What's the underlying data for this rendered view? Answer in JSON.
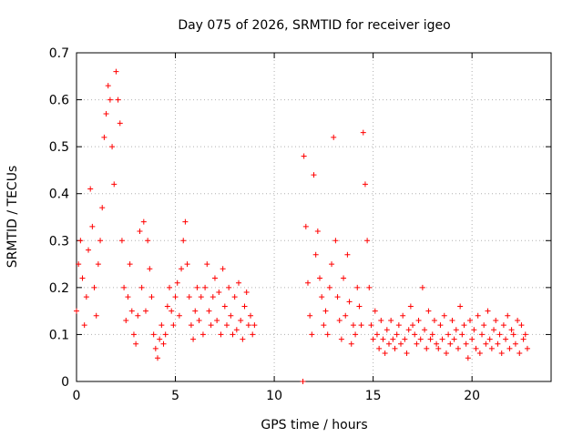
{
  "chart_data": {
    "type": "scatter",
    "title": "Day 075 of 2026, SRMTID for receiver igeo",
    "xlabel": "GPS time / hours",
    "ylabel": "SRMTID / TECUs",
    "xlim": [
      0,
      24
    ],
    "ylim": [
      0,
      0.7
    ],
    "xticks": [
      0,
      5,
      10,
      15,
      20
    ],
    "xtick_labels": [
      "0",
      "5",
      "10",
      "15",
      "20"
    ],
    "yticks": [
      0,
      0.1,
      0.2,
      0.3,
      0.4,
      0.5,
      0.6,
      0.7
    ],
    "ytick_labels": [
      "0",
      "0.1",
      "0.2",
      "0.3",
      "0.4",
      "0.5",
      "0.6",
      "0.7"
    ],
    "grid": true,
    "marker": "+",
    "series_color": "#ff0000",
    "series": [
      {
        "name": "SRMTID",
        "x": [
          0.0,
          0.1,
          0.2,
          0.3,
          0.4,
          0.5,
          0.6,
          0.7,
          0.8,
          0.9,
          1.0,
          1.1,
          1.2,
          1.3,
          1.4,
          1.5,
          1.6,
          1.7,
          1.8,
          1.9,
          2.0,
          2.1,
          2.2,
          2.3,
          2.4,
          2.5,
          2.6,
          2.7,
          2.8,
          2.9,
          3.0,
          3.1,
          3.2,
          3.3,
          3.4,
          3.5,
          3.6,
          3.7,
          3.8,
          3.9,
          4.0,
          4.1,
          4.2,
          4.3,
          4.4,
          4.5,
          4.6,
          4.7,
          4.8,
          4.9,
          5.0,
          5.1,
          5.2,
          5.3,
          5.4,
          5.5,
          5.6,
          5.7,
          5.8,
          5.9,
          6.0,
          6.1,
          6.2,
          6.3,
          6.4,
          6.5,
          6.6,
          6.7,
          6.8,
          6.9,
          7.0,
          7.1,
          7.2,
          7.3,
          7.4,
          7.5,
          7.6,
          7.7,
          7.8,
          7.9,
          8.0,
          8.1,
          8.2,
          8.3,
          8.4,
          8.5,
          8.6,
          8.7,
          8.8,
          8.9,
          9.0,
          11.45,
          11.5,
          11.6,
          11.7,
          11.8,
          11.9,
          12.0,
          12.1,
          12.2,
          12.3,
          12.4,
          12.5,
          12.6,
          12.7,
          12.8,
          12.9,
          13.0,
          13.1,
          13.2,
          13.3,
          13.4,
          13.5,
          13.6,
          13.7,
          13.8,
          13.9,
          14.0,
          14.1,
          14.2,
          14.3,
          14.4,
          14.5,
          14.6,
          14.7,
          14.8,
          14.9,
          15.0,
          15.1,
          15.2,
          15.3,
          15.4,
          15.5,
          15.6,
          15.7,
          15.8,
          15.9,
          16.0,
          16.1,
          16.2,
          16.3,
          16.4,
          16.5,
          16.6,
          16.7,
          16.8,
          16.9,
          17.0,
          17.1,
          17.2,
          17.3,
          17.4,
          17.5,
          17.6,
          17.7,
          17.8,
          17.9,
          18.0,
          18.1,
          18.2,
          18.3,
          18.4,
          18.5,
          18.6,
          18.7,
          18.8,
          18.9,
          19.0,
          19.1,
          19.2,
          19.3,
          19.4,
          19.5,
          19.6,
          19.7,
          19.8,
          19.9,
          20.0,
          20.1,
          20.2,
          20.3,
          20.4,
          20.5,
          20.6,
          20.7,
          20.8,
          20.9,
          21.0,
          21.1,
          21.2,
          21.3,
          21.4,
          21.5,
          21.6,
          21.7,
          21.8,
          21.9,
          22.0,
          22.1,
          22.2,
          22.3,
          22.4,
          22.5,
          22.6,
          22.7,
          22.8
        ],
        "y": [
          0.15,
          0.25,
          0.3,
          0.22,
          0.12,
          0.18,
          0.28,
          0.41,
          0.33,
          0.2,
          0.14,
          0.25,
          0.3,
          0.37,
          0.52,
          0.57,
          0.63,
          0.6,
          0.5,
          0.42,
          0.66,
          0.6,
          0.55,
          0.3,
          0.2,
          0.13,
          0.18,
          0.25,
          0.15,
          0.1,
          0.08,
          0.14,
          0.32,
          0.2,
          0.34,
          0.15,
          0.3,
          0.24,
          0.18,
          0.1,
          0.07,
          0.05,
          0.09,
          0.12,
          0.08,
          0.1,
          0.16,
          0.2,
          0.15,
          0.12,
          0.18,
          0.21,
          0.14,
          0.24,
          0.3,
          0.34,
          0.25,
          0.18,
          0.12,
          0.09,
          0.15,
          0.2,
          0.13,
          0.18,
          0.1,
          0.2,
          0.25,
          0.15,
          0.12,
          0.18,
          0.22,
          0.13,
          0.19,
          0.1,
          0.24,
          0.16,
          0.12,
          0.2,
          0.14,
          0.1,
          0.18,
          0.11,
          0.21,
          0.13,
          0.09,
          0.16,
          0.19,
          0.12,
          0.14,
          0.1,
          0.12,
          0.0,
          0.48,
          0.33,
          0.21,
          0.14,
          0.1,
          0.44,
          0.27,
          0.32,
          0.22,
          0.18,
          0.12,
          0.15,
          0.1,
          0.2,
          0.25,
          0.52,
          0.3,
          0.18,
          0.13,
          0.09,
          0.22,
          0.14,
          0.27,
          0.17,
          0.08,
          0.12,
          0.1,
          0.2,
          0.16,
          0.12,
          0.53,
          0.42,
          0.3,
          0.2,
          0.12,
          0.09,
          0.15,
          0.1,
          0.07,
          0.13,
          0.09,
          0.06,
          0.11,
          0.08,
          0.13,
          0.09,
          0.07,
          0.1,
          0.12,
          0.08,
          0.14,
          0.09,
          0.06,
          0.11,
          0.16,
          0.12,
          0.1,
          0.08,
          0.13,
          0.09,
          0.2,
          0.11,
          0.07,
          0.15,
          0.09,
          0.1,
          0.13,
          0.08,
          0.07,
          0.12,
          0.09,
          0.14,
          0.06,
          0.1,
          0.08,
          0.13,
          0.09,
          0.11,
          0.07,
          0.16,
          0.1,
          0.12,
          0.08,
          0.05,
          0.13,
          0.09,
          0.11,
          0.07,
          0.14,
          0.06,
          0.1,
          0.12,
          0.08,
          0.15,
          0.09,
          0.07,
          0.11,
          0.13,
          0.08,
          0.1,
          0.06,
          0.12,
          0.09,
          0.14,
          0.07,
          0.11,
          0.1,
          0.08,
          0.13,
          0.06,
          0.12,
          0.09,
          0.1,
          0.07
        ]
      }
    ]
  }
}
